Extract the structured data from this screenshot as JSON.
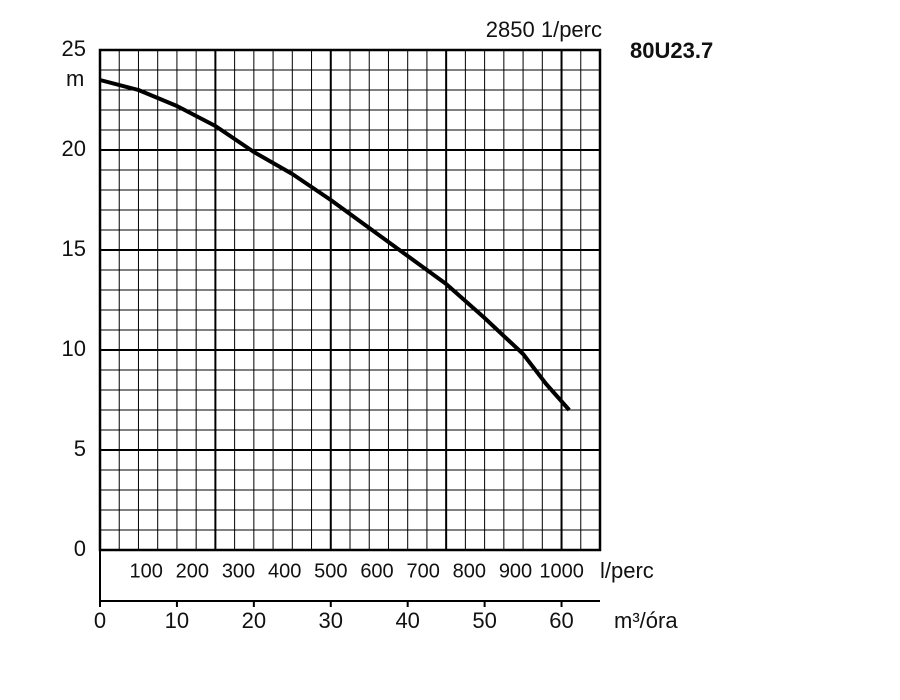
{
  "chart_data": {
    "type": "line",
    "speed_label": "2850 1/perc",
    "model": "80U23.7",
    "ylabel": "m",
    "xlabel": "m³/óra",
    "x2label": "l/perc",
    "x": [
      0,
      5,
      10,
      15,
      20,
      25,
      30,
      35,
      40,
      45,
      50,
      55,
      58,
      61
    ],
    "series": [
      {
        "name": "80U23.7",
        "color": "#000000",
        "values": [
          23.5,
          23.0,
          22.2,
          21.2,
          19.9,
          18.8,
          17.5,
          16.1,
          14.7,
          13.3,
          11.6,
          9.8,
          8.3,
          7.0
        ]
      }
    ],
    "xlim": [
      0,
      65
    ],
    "xticks": [
      0,
      10,
      20,
      30,
      40,
      50,
      60
    ],
    "x2lim": [
      0,
      1083
    ],
    "x2ticks": [
      100,
      200,
      300,
      400,
      500,
      600,
      700,
      800,
      900,
      1000
    ],
    "ylim": [
      0,
      25
    ],
    "yticks": [
      0,
      5,
      10,
      15,
      20,
      25
    ],
    "grid": true,
    "xgrid_step": 2.5,
    "ygrid_step": 1,
    "xgrid_major": [
      15,
      30,
      45,
      60
    ]
  }
}
